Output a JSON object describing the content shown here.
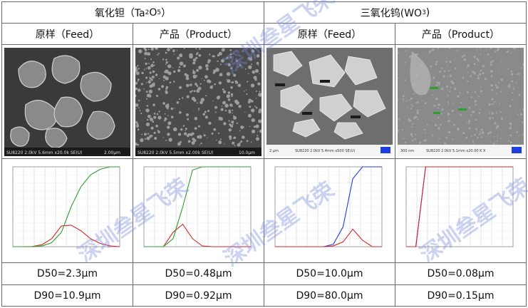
{
  "groups": [
    {
      "name": "氧化钽（Ta",
      "formula_sub": "2",
      "formula_mid": "O",
      "formula_sub2": "5",
      "formula_end": "）"
    },
    {
      "name": "三氧化钨(WO",
      "formula_sub": "3",
      "formula_end": ")"
    }
  ],
  "columns": [
    {
      "label": "原样（Feed）"
    },
    {
      "label": "产品（Product）"
    },
    {
      "label": "原样（Feed）"
    },
    {
      "label": "产品（Product）"
    }
  ],
  "sem_captions": [
    "SU8220 2.0kV 5.6mm x20.0k SE(U)",
    "SU8220 2.0kV 5.5mm x2.00k SE(U)",
    "SU8220 2.0kV 5.4mm x500 SE(U)",
    "SU8220 2.0kV 5.1mm x20.00 K X"
  ],
  "sem_scales": [
    "2.00μm",
    "10.0μm",
    "2 μm",
    "300 nm"
  ],
  "d50": [
    "D50=2.3μm",
    "D50=0.48μm",
    "D50=10.0μm",
    "D50=0.08μm"
  ],
  "d90": [
    "D90=10.9μm",
    "D90=0.92μm",
    "D90=80.0μm",
    "D90=0.15μm"
  ],
  "watermark": "深圳叁星飞荣",
  "colors": {
    "green": "#2ca02c",
    "red": "#d62728",
    "blue": "#1f3fdc",
    "grid": "#c8c8c8"
  },
  "chart_data": [
    {
      "type": "line",
      "series": [
        {
          "name": "",
          "values": [
            0,
            0,
            0.2,
            2.5,
            10,
            26,
            27,
            20,
            10,
            4,
            1,
            0
          ]
        },
        {
          "name": "",
          "values": [
            0,
            0,
            0,
            1,
            5,
            18,
            50,
            75,
            90,
            97,
            100,
            100
          ]
        }
      ]
    },
    {
      "type": "line",
      "series": [
        {
          "name": "",
          "values": [
            0,
            0,
            0,
            18,
            28,
            10,
            1,
            0,
            0,
            0,
            0,
            0
          ]
        },
        {
          "name": "",
          "values": [
            0,
            0,
            0,
            10,
            50,
            96,
            100,
            100,
            100,
            100,
            100,
            100
          ]
        }
      ]
    },
    {
      "type": "line",
      "series": [
        {
          "name": "",
          "values": [
            0,
            0,
            0,
            0,
            0,
            0,
            3,
            25,
            85,
            100,
            100,
            100
          ]
        },
        {
          "name": "",
          "values": [
            0,
            0,
            0,
            0,
            0,
            0,
            1,
            6,
            22,
            8,
            0,
            0
          ]
        }
      ]
    },
    {
      "type": "line",
      "series": [
        {
          "name": "",
          "values": [
            0,
            0,
            100,
            100,
            100,
            100,
            100,
            100,
            100,
            100,
            100,
            100
          ]
        },
        {
          "name": "",
          "values": [
            0,
            0,
            100,
            100,
            100,
            100,
            100,
            100,
            100,
            100,
            100,
            100
          ]
        }
      ]
    }
  ]
}
